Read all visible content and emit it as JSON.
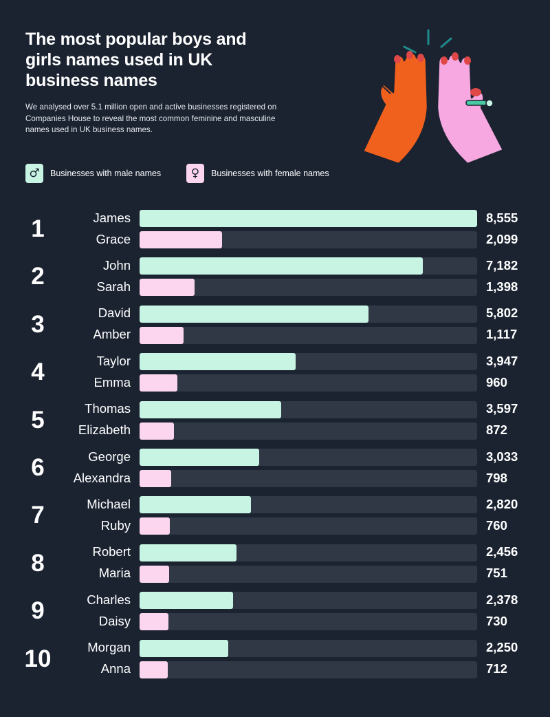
{
  "header": {
    "title": "The most popular boys and girls names used in UK business names",
    "subtitle": "We analysed over 5.1 million open and active businesses registered on Companies House to reveal the most common feminine and masculine names used in UK business names."
  },
  "legend": {
    "male": {
      "label": "Businesses with male names",
      "symbol": "♂",
      "icon": "male-symbol-icon"
    },
    "female": {
      "label": "Businesses with female names",
      "symbol": "♀",
      "icon": "female-symbol-icon"
    }
  },
  "colors": {
    "background": "#1b2331",
    "male": "#c8f5e3",
    "female": "#fcd6ee",
    "track": "#2f3844"
  },
  "chart_data": {
    "type": "bar",
    "orientation": "horizontal",
    "xlim": [
      0,
      8555
    ],
    "grid": false,
    "legend_position": "top-left",
    "categories": [
      "1",
      "2",
      "3",
      "4",
      "5",
      "6",
      "7",
      "8",
      "9",
      "10"
    ],
    "series": [
      {
        "name": "Businesses with male names",
        "labels": [
          "James",
          "John",
          "David",
          "Taylor",
          "Thomas",
          "George",
          "Michael",
          "Robert",
          "Charles",
          "Morgan"
        ],
        "values": [
          8555,
          7182,
          5802,
          3947,
          3597,
          3033,
          2820,
          2456,
          2378,
          2250
        ],
        "display": [
          "8,555",
          "7,182",
          "5,802",
          "3,947",
          "3,597",
          "3,033",
          "2,820",
          "2,456",
          "2,378",
          "2,250"
        ]
      },
      {
        "name": "Businesses with female names",
        "labels": [
          "Grace",
          "Sarah",
          "Amber",
          "Emma",
          "Elizabeth",
          "Alexandra",
          "Ruby",
          "Maria",
          "Daisy",
          "Anna"
        ],
        "values": [
          2099,
          1398,
          1117,
          960,
          872,
          798,
          760,
          751,
          730,
          712
        ],
        "display": [
          "2,099",
          "1,398",
          "1,117",
          "960",
          "872",
          "798",
          "760",
          "751",
          "730",
          "712"
        ]
      }
    ]
  }
}
